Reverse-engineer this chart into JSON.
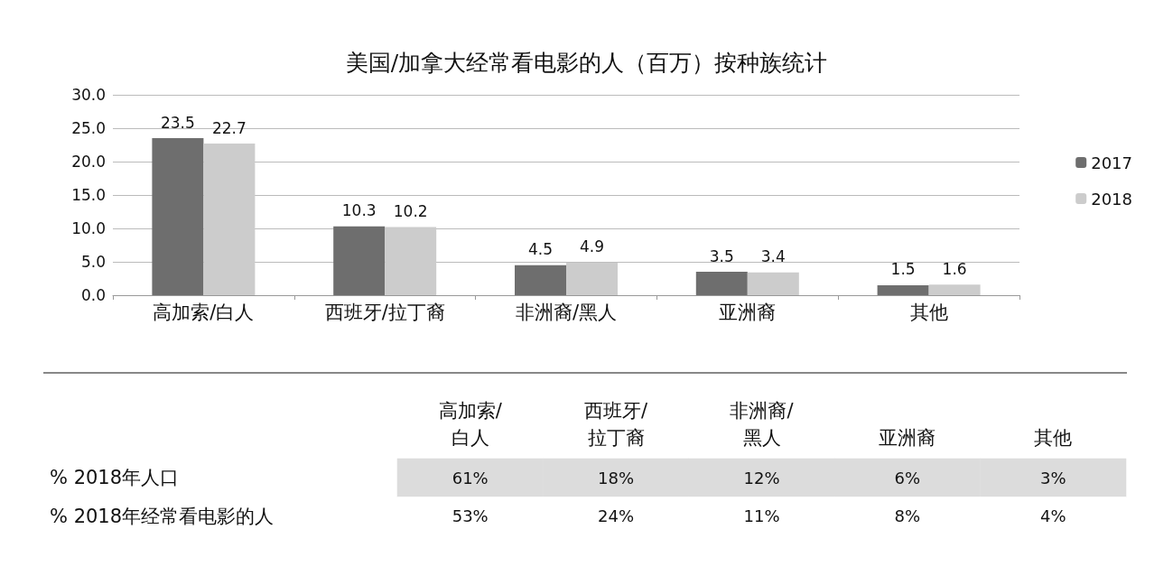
{
  "chart_data": [
    {
      "type": "bar",
      "title": "美国/加拿大经常看电影的人（百万）按种族统计",
      "categories": [
        "高加索/白人",
        "西班牙/拉丁裔",
        "非洲裔/黑人",
        "亚洲裔",
        "其他"
      ],
      "series": [
        {
          "name": "2017",
          "color": "#6e6e6e",
          "values": [
            23.5,
            10.3,
            4.5,
            3.5,
            1.5
          ]
        },
        {
          "name": "2018",
          "color": "#cccccc",
          "values": [
            22.7,
            10.2,
            4.9,
            3.4,
            1.6
          ]
        }
      ],
      "ylim": [
        0,
        30
      ],
      "yticks": [
        {
          "value": 0,
          "label": "0.0"
        },
        {
          "value": 5,
          "label": "5.0"
        },
        {
          "value": 10,
          "label": "10.0"
        },
        {
          "value": 15,
          "label": "15.0"
        },
        {
          "value": 20,
          "label": "20.0"
        },
        {
          "value": 25,
          "label": "25.0"
        },
        {
          "value": 30,
          "label": "30.0"
        }
      ],
      "grid": "y",
      "legend": "right",
      "data_labels": true
    },
    {
      "type": "other",
      "categories": [
        "高加索/\n白人",
        "西班牙/\n拉丁裔",
        "非洲裔/\n黑人",
        "亚洲裔",
        "其他"
      ],
      "y_categories": [
        "% 2018年人口",
        "% 2018年经常看电影的人"
      ],
      "cell_labels": [
        [
          "61%",
          "18%",
          "12%",
          "6%",
          "3%"
        ],
        [
          "53%",
          "24%",
          "11%",
          "8%",
          "4%"
        ]
      ]
    }
  ]
}
